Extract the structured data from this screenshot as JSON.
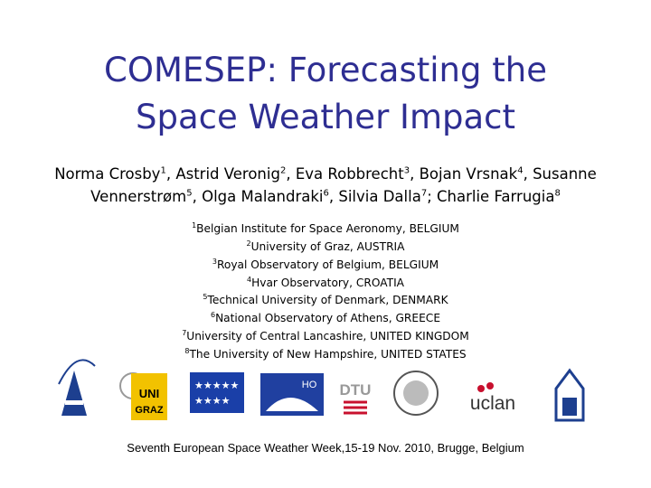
{
  "title": [
    "COMESEP: Forecasting the",
    "Space Weather Impact"
  ],
  "authors": [
    {
      "name": "Norma Crosby",
      "mark": "1",
      "sep": ","
    },
    {
      "name": "Astrid Veronig",
      "mark": "2",
      "sep": ","
    },
    {
      "name": "Eva Robbrecht",
      "mark": "3",
      "sep": ","
    },
    {
      "name": "Bojan Vrsnak",
      "mark": "4",
      "sep": ","
    },
    {
      "name": "Susanne Vennerstrøm",
      "mark": "5",
      "sep": ","
    },
    {
      "name": "Olga Malandraki",
      "mark": "6",
      "sep": ","
    },
    {
      "name": "Silvia Dalla",
      "mark": "7",
      "sep": ";"
    },
    {
      "name": "Charlie Farrugia",
      "mark": "8"
    }
  ],
  "affiliations": [
    {
      "mark": "1",
      "text": "Belgian Institute for Space Aeronomy, BELGIUM"
    },
    {
      "mark": "2",
      "text": "University of Graz, AUSTRIA"
    },
    {
      "mark": "3",
      "text": "Royal Observatory of Belgium, BELGIUM"
    },
    {
      "mark": "4",
      "text": "Hvar Observatory, CROATIA"
    },
    {
      "mark": "5",
      "text": "Technical University of Denmark, DENMARK"
    },
    {
      "mark": "6",
      "text": "National Observatory of Athens, GREECE"
    },
    {
      "mark": "7",
      "text": "University of Central Lancashire, UNITED KINGDOM"
    },
    {
      "mark": "8",
      "text": "The University of New Hampshire, UNITED STATES"
    }
  ],
  "logos": {
    "graz": [
      "UNI",
      "GRAZ"
    ],
    "hvar": "HO",
    "dtu": "DTU",
    "uclan": "uclan"
  },
  "footer": "Seventh European Space Weather Week,15-19 Nov. 2010, Brugge, Belgium"
}
